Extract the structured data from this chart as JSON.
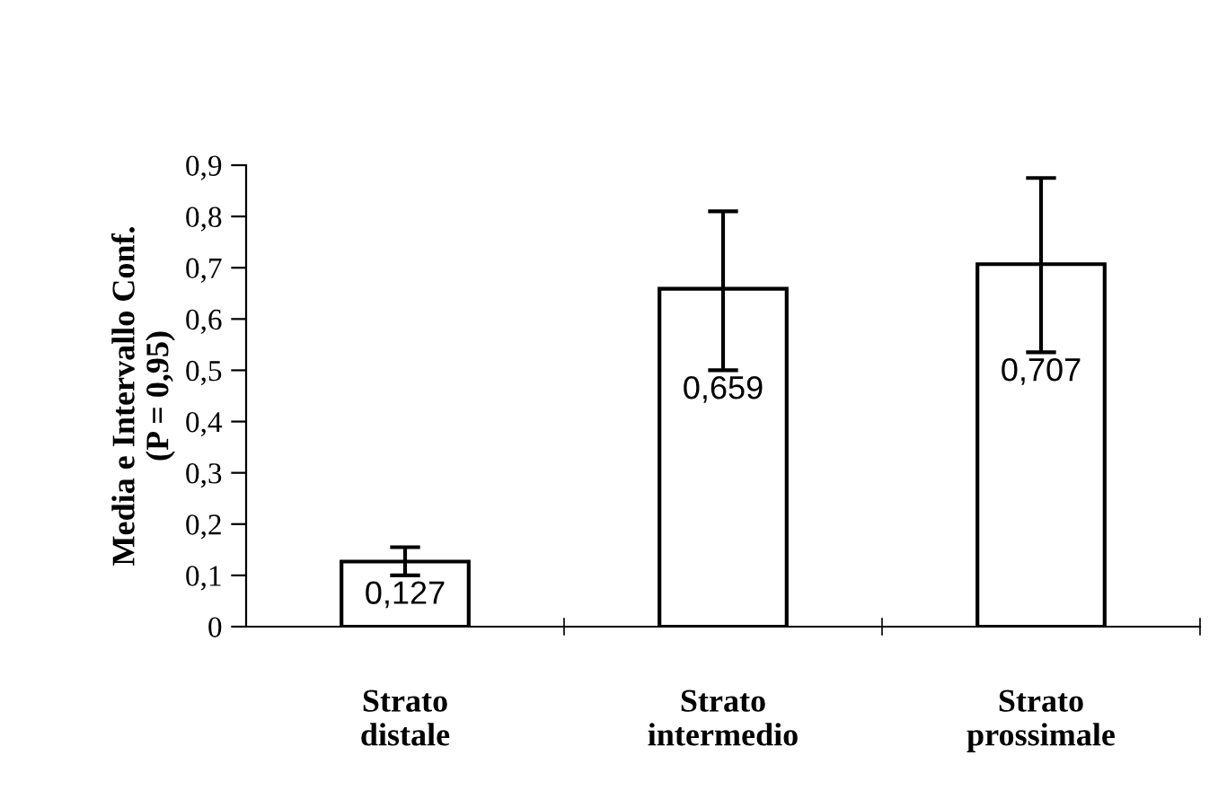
{
  "chart_data": {
    "type": "bar",
    "ylabel": "Media e Intervallo Conf.\n(P = 0,95)",
    "categories": [
      "Strato\ndistale",
      "Strato\nintermedio",
      "Strato\nprossimale"
    ],
    "values": [
      0.127,
      0.659,
      0.707
    ],
    "value_labels": [
      "0,127",
      "0,659",
      "0,707"
    ],
    "errors": [
      [
        0.1,
        0.155
      ],
      [
        0.5,
        0.81
      ],
      [
        0.535,
        0.875
      ]
    ],
    "color": "#ffffff",
    "ylim": [
      0,
      0.9
    ],
    "yticks": [
      0,
      {
        "value": 0.1,
        "label": "0,1"
      },
      {
        "value": 0.2,
        "label": "0,2"
      },
      {
        "value": 0.3,
        "label": "0,3"
      },
      {
        "value": 0.4,
        "label": "0,4"
      },
      {
        "value": 0.5,
        "label": "0,5"
      },
      {
        "value": 0.6,
        "label": "0,6"
      },
      {
        "value": 0.7,
        "label": "0,7"
      },
      {
        "value": 0.8,
        "label": "0,8"
      },
      {
        "value": 0.9,
        "label": "0,9"
      }
    ],
    "grid": false
  }
}
